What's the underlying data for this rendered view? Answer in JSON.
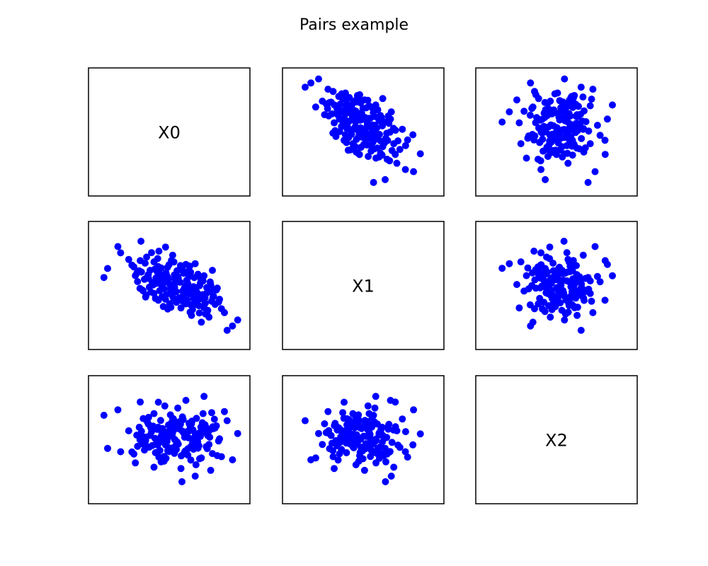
{
  "chart_data": {
    "type": "scatter",
    "title": "Pairs example",
    "layout": "pairs-matrix",
    "variables": [
      "X0",
      "X1",
      "X2"
    ],
    "axes_visible": false,
    "grid": false,
    "marker_color": "#0000ff",
    "axis_ranges": {
      "X0": [
        -3.4,
        2.6
      ],
      "X1": [
        -3.3,
        3.4
      ],
      "X2": [
        -2.8,
        2.7
      ]
    },
    "samples": [
      {
        "X0": -1.55,
        "X1": 2.65,
        "X2": 0.23
      },
      {
        "X0": -0.82,
        "X1": 2.07,
        "X2": -0.89
      },
      {
        "X0": -1.58,
        "X1": 1.51,
        "X2": 1.77
      },
      {
        "X0": -2.38,
        "X1": 1.97,
        "X2": -0.63
      },
      {
        "X0": 0.28,
        "X1": 1.29,
        "X2": 1.85
      },
      {
        "X0": 0.12,
        "X1": 1.06,
        "X2": -2.08
      },
      {
        "X0": 1.02,
        "X1": 0.62,
        "X2": 2.04
      },
      {
        "X0": -0.55,
        "X1": 2.31,
        "X2": -0.3
      },
      {
        "X0": -0.31,
        "X1": 1.52,
        "X2": 0.58
      },
      {
        "X0": 1.36,
        "X1": 0.94,
        "X2": -0.72
      },
      {
        "X0": -2.49,
        "X1": 2.34,
        "X2": 1.39
      },
      {
        "X0": 2.39,
        "X1": -1.98,
        "X2": 0.25
      },
      {
        "X0": 2.18,
        "X1": -2.33,
        "X2": -1.02
      },
      {
        "X0": 1.85,
        "X1": -1.55,
        "X2": 1.31
      },
      {
        "X0": 1.96,
        "X1": -2.59,
        "X2": 0.87
      },
      {
        "X0": 0.59,
        "X1": -0.72,
        "X2": -0.21
      },
      {
        "X0": 1.07,
        "X1": -0.99,
        "X2": 0.44
      },
      {
        "X0": -2.91,
        "X1": 1.05,
        "X2": -0.47
      },
      {
        "X0": -3.06,
        "X1": 0.52,
        "X2": 1.13
      },
      {
        "X0": -0.26,
        "X1": 1.83,
        "X2": 0.95
      },
      {
        "X0": -1.02,
        "X1": 1.44,
        "X2": -1.38
      },
      {
        "X0": 1.52,
        "X1": -0.21,
        "X2": 0.62
      },
      {
        "X0": 0.91,
        "X1": -2.11,
        "X2": -0.93
      },
      {
        "X0": -1.34,
        "X1": -0.53,
        "X2": 0.08
      },
      {
        "X0": 0.66,
        "X1": 1.33,
        "X2": -1.81
      },
      {
        "X0": -0.78,
        "X1": 0.73,
        "X2": -0.57
      },
      {
        "X0": 1.15,
        "X1": -1.48,
        "X2": -0.48
      },
      {
        "X0": -0.84,
        "X1": -0.82,
        "X2": 1.76
      },
      {
        "X0": 0.08,
        "X1": -1.27,
        "X2": -1.44
      },
      {
        "X0": -1.62,
        "X1": 0.91,
        "X2": 0.55
      },
      {
        "X0": -0.16,
        "X1": 0.39,
        "X2": -0.06
      },
      {
        "X0": 0.43,
        "X1": -0.44,
        "X2": 0.68
      },
      {
        "X0": -1.92,
        "X1": 1.25,
        "X2": -0.64
      },
      {
        "X0": 0.98,
        "X1": 0.32,
        "X2": 1.21
      },
      {
        "X0": -0.61,
        "X1": -0.15,
        "X2": -1.09
      },
      {
        "X0": 1.65,
        "X1": -0.76,
        "X2": -0.01
      },
      {
        "X0": -1.12,
        "X1": 1.98,
        "X2": 0.34
      },
      {
        "X0": 0.36,
        "X1": 0.88,
        "X2": -0.79
      },
      {
        "X0": -0.38,
        "X1": -1.02,
        "X2": 0.41
      },
      {
        "X0": 1.29,
        "X1": 0.11,
        "X2": -1.53
      },
      {
        "X0": -1.46,
        "X1": -0.27,
        "X2": 0.97
      },
      {
        "X0": 0.73,
        "X1": -0.35,
        "X2": 0.14
      },
      {
        "X0": -0.05,
        "X1": 0.58,
        "X2": 1.48
      },
      {
        "X0": -0.93,
        "X1": 0.17,
        "X2": -0.24
      },
      {
        "X0": 0.51,
        "X1": -1.71,
        "X2": 0.72
      },
      {
        "X0": -1.78,
        "X1": 0.63,
        "X2": -1.17
      },
      {
        "X0": 1.41,
        "X1": -0.58,
        "X2": 0.49
      },
      {
        "X0": -0.47,
        "X1": 1.12,
        "X2": 0.06
      },
      {
        "X0": 0.22,
        "X1": -0.09,
        "X2": -0.66
      },
      {
        "X0": -1.24,
        "X1": 0.46,
        "X2": 1.03
      },
      {
        "X0": 0.81,
        "X1": -1.14,
        "X2": -0.34
      },
      {
        "X0": -0.69,
        "X1": -0.61,
        "X2": 0.26
      },
      {
        "X0": 1.73,
        "X1": -1.32,
        "X2": -0.87
      },
      {
        "X0": -2.05,
        "X1": 1.58,
        "X2": 0.38
      },
      {
        "X0": 0.04,
        "X1": 0.24,
        "X2": 0.83
      },
      {
        "X0": -0.24,
        "X1": -0.38,
        "X2": -0.44
      },
      {
        "X0": 0.62,
        "X1": 0.51,
        "X2": -0.13
      },
      {
        "X0": -1.06,
        "X1": 0.08,
        "X2": 0.61
      },
      {
        "X0": 1.18,
        "X1": -0.25,
        "X2": 0.19
      },
      {
        "X0": -0.53,
        "X1": 0.79,
        "X2": -0.95
      },
      {
        "X0": 0.33,
        "X1": -0.81,
        "X2": 0.31
      },
      {
        "X0": -1.38,
        "X1": 1.36,
        "X2": -0.18
      },
      {
        "X0": 0.95,
        "X1": -0.49,
        "X2": 0.77
      },
      {
        "X0": -0.11,
        "X1": -0.94,
        "X2": -0.52
      },
      {
        "X0": -0.72,
        "X1": 0.35,
        "X2": 0.13
      },
      {
        "X0": 1.47,
        "X1": -1.06,
        "X2": 0.52
      },
      {
        "X0": -1.69,
        "X1": 0.28,
        "X2": -0.37
      },
      {
        "X0": 0.44,
        "X1": 1.19,
        "X2": 0.46
      },
      {
        "X0": -0.35,
        "X1": -0.17,
        "X2": 1.15
      },
      {
        "X0": 0.69,
        "X1": -0.28,
        "X2": -1.26
      },
      {
        "X0": -0.98,
        "X1": 1.02,
        "X2": 0.02
      },
      {
        "X0": 1.08,
        "X1": -1.63,
        "X2": 0.29
      },
      {
        "X0": -0.19,
        "X1": 0.67,
        "X2": -0.71
      },
      {
        "X0": 0.17,
        "X1": -0.59,
        "X2": 0.92
      },
      {
        "X0": -1.21,
        "X1": -0.05,
        "X2": -0.41
      },
      {
        "X0": 0.87,
        "X1": 0.19,
        "X2": 0.11
      },
      {
        "X0": -0.64,
        "X1": -1.19,
        "X2": -0.09
      },
      {
        "X0": 1.33,
        "X1": -0.88,
        "X2": 1.26
      },
      {
        "X0": -1.53,
        "X1": 0.84,
        "X2": 0.36
      },
      {
        "X0": 0.26,
        "X1": 0.02,
        "X2": -0.59
      },
      {
        "X0": -0.43,
        "X1": 0.45,
        "X2": 0.66
      },
      {
        "X0": 0.55,
        "X1": -1.37,
        "X2": -0.22
      },
      {
        "X0": -0.87,
        "X1": 1.63,
        "X2": -0.31
      },
      {
        "X0": 1.56,
        "X1": -0.11,
        "X2": -0.82
      },
      {
        "X0": 0.01,
        "X1": -0.67,
        "X2": 0.47
      },
      {
        "X0": -1.29,
        "X1": 0.56,
        "X2": 0.81
      },
      {
        "X0": 0.77,
        "X1": 0.71,
        "X2": -0.46
      },
      {
        "X0": -0.29,
        "X1": -0.46,
        "X2": 0.18
      },
      {
        "X0": 1.22,
        "X1": -1.81,
        "X2": -0.28
      },
      {
        "X0": -0.58,
        "X1": 0.27,
        "X2": 1.58
      },
      {
        "X0": 0.39,
        "X1": -0.19,
        "X2": 0.04
      },
      {
        "X0": -1.84,
        "X1": 1.14,
        "X2": -0.74
      },
      {
        "X0": 0.94,
        "X1": -0.74,
        "X2": 0.35
      },
      {
        "X0": -0.08,
        "X1": 0.92,
        "X2": -0.16
      },
      {
        "X0": -1.15,
        "X1": -0.33,
        "X2": 0.53
      },
      {
        "X0": 0.48,
        "X1": -1.09,
        "X2": -1.03
      },
      {
        "X0": -0.75,
        "X1": 0.13,
        "X2": 0.88
      },
      {
        "X0": 1.11,
        "X1": -0.42,
        "X2": -0.38
      },
      {
        "X0": -0.21,
        "X1": 1.43,
        "X2": 0.42
      },
      {
        "X0": 0.64,
        "X1": -0.97,
        "X2": 0.09
      },
      {
        "X0": -1.41,
        "X1": 0.41,
        "X2": -0.55
      },
      {
        "X0": 0.14,
        "X1": -0.29,
        "X2": 1.05
      },
      {
        "X0": -0.49,
        "X1": 0.61,
        "X2": -0.12
      },
      {
        "X0": 1.38,
        "X1": -0.64,
        "X2": 0.58
      },
      {
        "X0": -0.96,
        "X1": -0.71,
        "X2": -0.68
      },
      {
        "X0": 0.31,
        "X1": 0.36,
        "X2": 0.21
      },
      {
        "X0": -0.33,
        "X1": -1.23,
        "X2": 0.74
      },
      {
        "X0": 0.84,
        "X1": 0.04,
        "X2": -0.97
      },
      {
        "X0": -1.18,
        "X1": 0.94,
        "X2": 0.16
      },
      {
        "X0": 0.58,
        "X1": -0.53,
        "X2": -0.27
      },
      {
        "X0": -0.67,
        "X1": -0.02,
        "X2": 0.49
      },
      {
        "X0": 1.02,
        "X1": -1.26,
        "X2": 0.63
      },
      {
        "X0": -0.14,
        "X1": 0.21,
        "X2": -0.35
      },
      {
        "X0": 0.19,
        "X1": 0.77,
        "X2": 0.27
      },
      {
        "X0": -1.59,
        "X1": -0.12,
        "X2": -0.05
      },
      {
        "X0": 0.71,
        "X1": -0.83,
        "X2": 0.98
      },
      {
        "X0": -0.41,
        "X1": 1.27,
        "X2": -0.62
      },
      {
        "X0": 1.25,
        "X1": -0.31,
        "X2": 0.07
      },
      {
        "X0": -0.81,
        "X1": 0.53,
        "X2": -0.19
      },
      {
        "X0": 0.45,
        "X1": -1.52,
        "X2": 0.39
      },
      {
        "X0": -1.02,
        "X1": -0.42,
        "X2": 1.21
      },
      {
        "X0": 0.09,
        "X1": 0.98,
        "X2": -0.83
      },
      {
        "X0": -0.55,
        "X1": -0.76,
        "X2": 0.32
      },
      {
        "X0": 1.61,
        "X1": -0.93,
        "X2": -0.11
      },
      {
        "X0": -1.25,
        "X1": 0.69,
        "X2": 0.71
      },
      {
        "X0": 0.36,
        "X1": 0.14,
        "X2": -0.49
      },
      {
        "X0": -0.27,
        "X1": -0.55,
        "X2": 0.24
      },
      {
        "X0": 0.89,
        "X1": 0.44,
        "X2": 0.56
      },
      {
        "X0": -0.73,
        "X1": 1.08,
        "X2": -1.12
      },
      {
        "X0": 0.53,
        "X1": -0.14,
        "X2": 0.85
      },
      {
        "X0": -1.49,
        "X1": -0.22,
        "X2": -0.25
      },
      {
        "X0": 1.17,
        "X1": -1.41,
        "X2": 0.15
      },
      {
        "X0": -0.09,
        "X1": 0.31,
        "X2": 0.62
      },
      {
        "X0": 0.27,
        "X1": -1.03,
        "X2": -0.73
      },
      {
        "X0": -0.89,
        "X1": 0.86,
        "X2": 0.45
      },
      {
        "X0": 0.76,
        "X1": -0.62,
        "X2": -0.15
      },
      {
        "X0": -0.36,
        "X1": 0.07,
        "X2": 0.12
      },
      {
        "X0": 1.44,
        "X1": -0.17,
        "X2": 0.94
      },
      {
        "X0": -1.32,
        "X1": 1.72,
        "X2": -0.42
      },
      {
        "X0": 0.13,
        "X1": -0.86,
        "X2": 0.37
      },
      {
        "X0": -0.61,
        "X1": 0.38,
        "X2": -0.86
      },
      {
        "X0": 0.98,
        "X1": -1.17,
        "X2": 0.59
      },
      {
        "X0": -0.18,
        "X1": -0.07,
        "X2": -0.03
      },
      {
        "X0": 0.41,
        "X1": 0.58,
        "X2": 0.75
      },
      {
        "X0": -1.09,
        "X1": 0.22,
        "X2": -0.33
      },
      {
        "X0": 0.67,
        "X1": -0.39,
        "X2": 0.22
      },
      {
        "X0": -0.46,
        "X1": -1.33,
        "X2": -0.58
      },
      {
        "X0": 1.27,
        "X1": 0.26,
        "X2": 0.43
      },
      {
        "X0": -0.79,
        "X1": -0.26,
        "X2": 0.01
      },
      {
        "X0": 0.06,
        "X1": 1.22,
        "X2": 0.69
      },
      {
        "X0": -1.72,
        "X1": 0.77,
        "X2": 0.17
      },
      {
        "X0": 0.59,
        "X1": -0.02,
        "X2": -0.51
      },
      {
        "X0": -0.23,
        "X1": -0.69,
        "X2": 0.96
      },
      {
        "X0": 0.83,
        "X1": -1.57,
        "X2": 0.28
      },
      {
        "X0": -0.94,
        "X1": 0.49,
        "X2": -0.67
      },
      {
        "X0": 0.32,
        "X1": 0.32,
        "X2": 0.34
      },
      {
        "X0": -0.52,
        "X1": -0.48,
        "X2": -0.21
      },
      {
        "X0": 1.13,
        "X1": -0.07,
        "X2": 0.51
      },
      {
        "X0": -1.36,
        "X1": -0.63,
        "X2": -0.08
      },
      {
        "X0": 0.47,
        "X1": 0.83,
        "X2": -0.39
      },
      {
        "X0": -0.12,
        "X1": -0.31,
        "X2": 0.79
      },
      {
        "X0": 0.74,
        "X1": -0.99,
        "X2": -0.17
      },
      {
        "X0": -0.85,
        "X1": 1.16,
        "X2": 0.55
      },
      {
        "X0": 0.23,
        "X1": -0.45,
        "X2": 0.07
      },
      {
        "X0": -0.39,
        "X1": 0.15,
        "X2": -0.45
      },
      {
        "X0": 1.06,
        "X1": -0.69,
        "X2": 0.67
      },
      {
        "X0": -0.66,
        "X1": 0.63,
        "X2": -0.02
      },
      {
        "X0": 0.57,
        "X1": -1.13,
        "X2": 0.42
      },
      {
        "X0": -0.03,
        "X1": 0.48,
        "X2": -0.26
      }
    ]
  }
}
